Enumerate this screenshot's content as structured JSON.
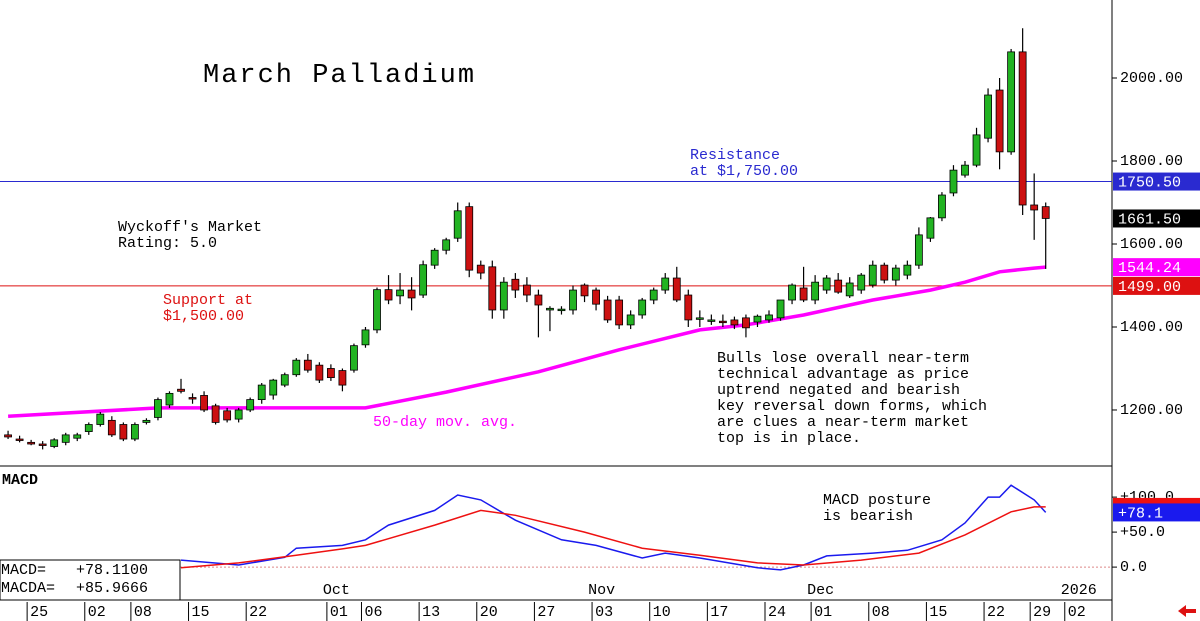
{
  "chart_data": [
    {
      "type": "candlestick",
      "title": "March Palladium",
      "xlim": [
        -0.7,
        95.75
      ],
      "ylim": [
        1065,
        2188
      ],
      "yticks": [
        {
          "value": 1200,
          "label": "1200.00"
        },
        {
          "value": 1400,
          "label": "1400.00"
        },
        {
          "value": 1600,
          "label": "1600.00"
        },
        {
          "value": 1800,
          "label": "1800.00"
        },
        {
          "value": 2000,
          "label": "2000.00"
        }
      ],
      "up_color": "#22b322",
      "down_color": "#cc1111",
      "x": [
        0,
        1,
        2,
        3,
        4,
        5,
        6,
        7,
        8,
        9,
        10,
        11,
        12,
        13,
        14,
        15,
        16,
        17,
        18,
        19,
        20,
        21,
        22,
        23,
        24,
        25,
        26,
        27,
        28,
        29,
        30,
        31,
        32,
        33,
        34,
        35,
        36,
        37,
        38,
        39,
        40,
        41,
        42,
        43,
        44,
        45,
        46,
        47,
        48,
        49,
        50,
        51,
        52,
        53,
        54,
        55,
        56,
        57,
        58,
        59,
        60,
        61,
        62,
        63,
        64,
        65,
        66,
        67,
        68,
        69,
        70,
        71,
        72,
        73,
        74,
        75,
        76,
        77,
        78,
        79,
        80,
        81,
        82,
        83,
        84,
        85,
        86,
        87,
        88,
        89,
        90
      ],
      "open": [
        1140,
        1130,
        1122,
        1118,
        1112,
        1122,
        1132,
        1148,
        1165,
        1175,
        1165,
        1130,
        1170,
        1182,
        1212,
        1250,
        1230,
        1235,
        1210,
        1198,
        1178,
        1200,
        1225,
        1236,
        1260,
        1285,
        1320,
        1308,
        1300,
        1295,
        1296,
        1357,
        1393,
        1490,
        1475,
        1489,
        1477,
        1549,
        1585,
        1614,
        1690,
        1549,
        1545,
        1441,
        1515,
        1501,
        1477,
        1441,
        1441,
        1441,
        1501,
        1489,
        1465,
        1465,
        1405,
        1429,
        1465,
        1489,
        1518,
        1477,
        1420,
        1415,
        1414,
        1417,
        1422,
        1412,
        1417,
        1422,
        1465,
        1494,
        1465,
        1489,
        1513,
        1475,
        1489,
        1501,
        1549,
        1513,
        1525,
        1549,
        1614,
        1663,
        1723,
        1766,
        1790,
        1855,
        1971,
        1822,
        2063,
        1694,
        1690
      ],
      "high": [
        1150,
        1138,
        1128,
        1125,
        1132,
        1145,
        1145,
        1170,
        1195,
        1185,
        1170,
        1170,
        1180,
        1230,
        1245,
        1275,
        1240,
        1245,
        1215,
        1205,
        1205,
        1230,
        1265,
        1275,
        1290,
        1325,
        1335,
        1315,
        1310,
        1300,
        1360,
        1400,
        1495,
        1525,
        1530,
        1520,
        1560,
        1590,
        1615,
        1700,
        1700,
        1560,
        1560,
        1520,
        1530,
        1520,
        1490,
        1450,
        1450,
        1500,
        1505,
        1495,
        1475,
        1475,
        1440,
        1470,
        1495,
        1530,
        1545,
        1490,
        1440,
        1430,
        1430,
        1425,
        1430,
        1430,
        1440,
        1465,
        1505,
        1545,
        1525,
        1525,
        1530,
        1520,
        1530,
        1560,
        1555,
        1550,
        1560,
        1640,
        1665,
        1725,
        1790,
        1800,
        1880,
        1975,
        2000,
        2070,
        2120,
        1770,
        1700
      ],
      "low": [
        1130,
        1122,
        1115,
        1105,
        1108,
        1115,
        1125,
        1140,
        1160,
        1135,
        1125,
        1125,
        1165,
        1175,
        1205,
        1240,
        1215,
        1195,
        1165,
        1170,
        1170,
        1195,
        1215,
        1225,
        1255,
        1280,
        1290,
        1265,
        1270,
        1245,
        1290,
        1350,
        1385,
        1455,
        1455,
        1440,
        1470,
        1540,
        1575,
        1605,
        1520,
        1515,
        1420,
        1420,
        1470,
        1460,
        1375,
        1390,
        1430,
        1430,
        1460,
        1440,
        1410,
        1395,
        1395,
        1420,
        1455,
        1480,
        1460,
        1400,
        1400,
        1405,
        1400,
        1395,
        1375,
        1400,
        1410,
        1415,
        1455,
        1460,
        1455,
        1480,
        1480,
        1470,
        1480,
        1495,
        1505,
        1500,
        1515,
        1540,
        1605,
        1655,
        1715,
        1760,
        1785,
        1845,
        1780,
        1815,
        1670,
        1610,
        1540
      ],
      "close": [
        1135,
        1128,
        1118,
        1115,
        1128,
        1140,
        1140,
        1165,
        1190,
        1140,
        1130,
        1165,
        1175,
        1225,
        1240,
        1245,
        1228,
        1200,
        1170,
        1176,
        1200,
        1225,
        1260,
        1272,
        1285,
        1320,
        1296,
        1272,
        1278,
        1260,
        1355,
        1393,
        1490,
        1465,
        1489,
        1470,
        1550,
        1585,
        1610,
        1680,
        1537,
        1530,
        1441,
        1508,
        1489,
        1477,
        1453,
        1445,
        1443,
        1489,
        1475,
        1455,
        1417,
        1405,
        1429,
        1465,
        1489,
        1518,
        1465,
        1417,
        1422,
        1417,
        1412,
        1405,
        1398,
        1426,
        1429,
        1465,
        1501,
        1465,
        1508,
        1518,
        1484,
        1506,
        1525,
        1549,
        1513,
        1542,
        1549,
        1622,
        1663,
        1718,
        1778,
        1790,
        1863,
        1959,
        1822,
        2063,
        1694,
        1682,
        1661.5
      ],
      "close_label": "1661.50",
      "moving_average": {
        "name": "50-day mov. avg.",
        "color": "#ff00ff",
        "x": [
          0,
          13,
          31,
          38,
          46,
          53,
          60,
          64,
          69,
          75,
          80,
          83,
          86,
          89,
          90
        ],
        "values": [
          1185,
          1205,
          1205,
          1243,
          1292,
          1345,
          1393,
          1405,
          1429,
          1465,
          1489,
          1508,
          1533,
          1542,
          1544.24
        ],
        "last_label": "1544.24"
      },
      "resistance": {
        "value": 1750.5,
        "label": "1750.50",
        "color": "#2a2ad0",
        "note": [
          "Resistance",
          "at $1,750.00"
        ]
      },
      "support": {
        "value": 1499,
        "label": "1499.00",
        "color": "#dd1111",
        "note": [
          "Support at",
          "$1,500.00"
        ]
      },
      "annotations": [
        [
          "Wyckoff's Market",
          "Rating: 5.0"
        ],
        [
          "Bulls lose overall near-term",
          "technical advantage as price",
          "uptrend negated and bearish",
          "key reversal down forms, which",
          "are clues a near-term market",
          "top is in place."
        ]
      ]
    },
    {
      "type": "line",
      "title": "MACD",
      "xlim": [
        -0.7,
        95.75
      ],
      "ylim": [
        -47,
        143
      ],
      "yticks": [
        {
          "value": 0,
          "label": "0.0"
        },
        {
          "value": 50,
          "label": "+50.0"
        },
        {
          "value": 100,
          "label": "+100.0"
        }
      ],
      "series": [
        {
          "name": "MACD=",
          "color": "#1a1aee",
          "readout": "+78.1100",
          "last_label": "+78.1",
          "x": [
            15,
            20,
            24,
            25,
            29,
            31,
            33,
            37,
            39,
            41,
            44,
            48,
            51,
            55,
            57,
            60,
            65,
            67,
            69,
            71,
            75,
            78,
            81,
            83,
            85,
            86,
            87,
            89,
            90
          ],
          "values": [
            10,
            3,
            14,
            27,
            31,
            39,
            60,
            81,
            103,
            96,
            67,
            39,
            31,
            13,
            20,
            13,
            -1,
            -4,
            3,
            16,
            20,
            24,
            39,
            63,
            100,
            100,
            117,
            96,
            78.11
          ]
        },
        {
          "name": "MACDA=",
          "color": "#ee1111",
          "readout": "+85.9666",
          "x": [
            15,
            20,
            25,
            29,
            31,
            37,
            41,
            44,
            50,
            55,
            60,
            65,
            69,
            74,
            79,
            83,
            87,
            89,
            90
          ],
          "values": [
            -1,
            6,
            17,
            26,
            31,
            60,
            81,
            74,
            50,
            27,
            17,
            6,
            3,
            10,
            20,
            46,
            79,
            86,
            85.9666
          ]
        }
      ],
      "annotation": [
        "MACD posture",
        "is bearish"
      ],
      "xticks": [
        {
          "value": 2,
          "label": "25"
        },
        {
          "value": 7,
          "label": "02"
        },
        {
          "value": 11,
          "label": "08"
        },
        {
          "value": 16,
          "label": "15"
        },
        {
          "value": 21,
          "label": "22"
        },
        {
          "value": 28,
          "label": "01"
        },
        {
          "value": 31,
          "label": "06"
        },
        {
          "value": 36,
          "label": "13"
        },
        {
          "value": 41,
          "label": "20"
        },
        {
          "value": 46,
          "label": "27"
        },
        {
          "value": 51,
          "label": "03"
        },
        {
          "value": 56,
          "label": "10"
        },
        {
          "value": 61,
          "label": "17"
        },
        {
          "value": 66,
          "label": "24"
        },
        {
          "value": 70,
          "label": "01"
        },
        {
          "value": 75,
          "label": "08"
        },
        {
          "value": 80,
          "label": "15"
        },
        {
          "value": 85,
          "label": "22"
        },
        {
          "value": 89,
          "label": "29"
        },
        {
          "value": 92,
          "label": "02"
        }
      ],
      "months": [
        {
          "value": 28,
          "label": "Oct"
        },
        {
          "value": 51,
          "label": "Nov"
        },
        {
          "value": 70,
          "label": "Dec"
        },
        {
          "value": 92,
          "label": "2026"
        }
      ]
    }
  ]
}
